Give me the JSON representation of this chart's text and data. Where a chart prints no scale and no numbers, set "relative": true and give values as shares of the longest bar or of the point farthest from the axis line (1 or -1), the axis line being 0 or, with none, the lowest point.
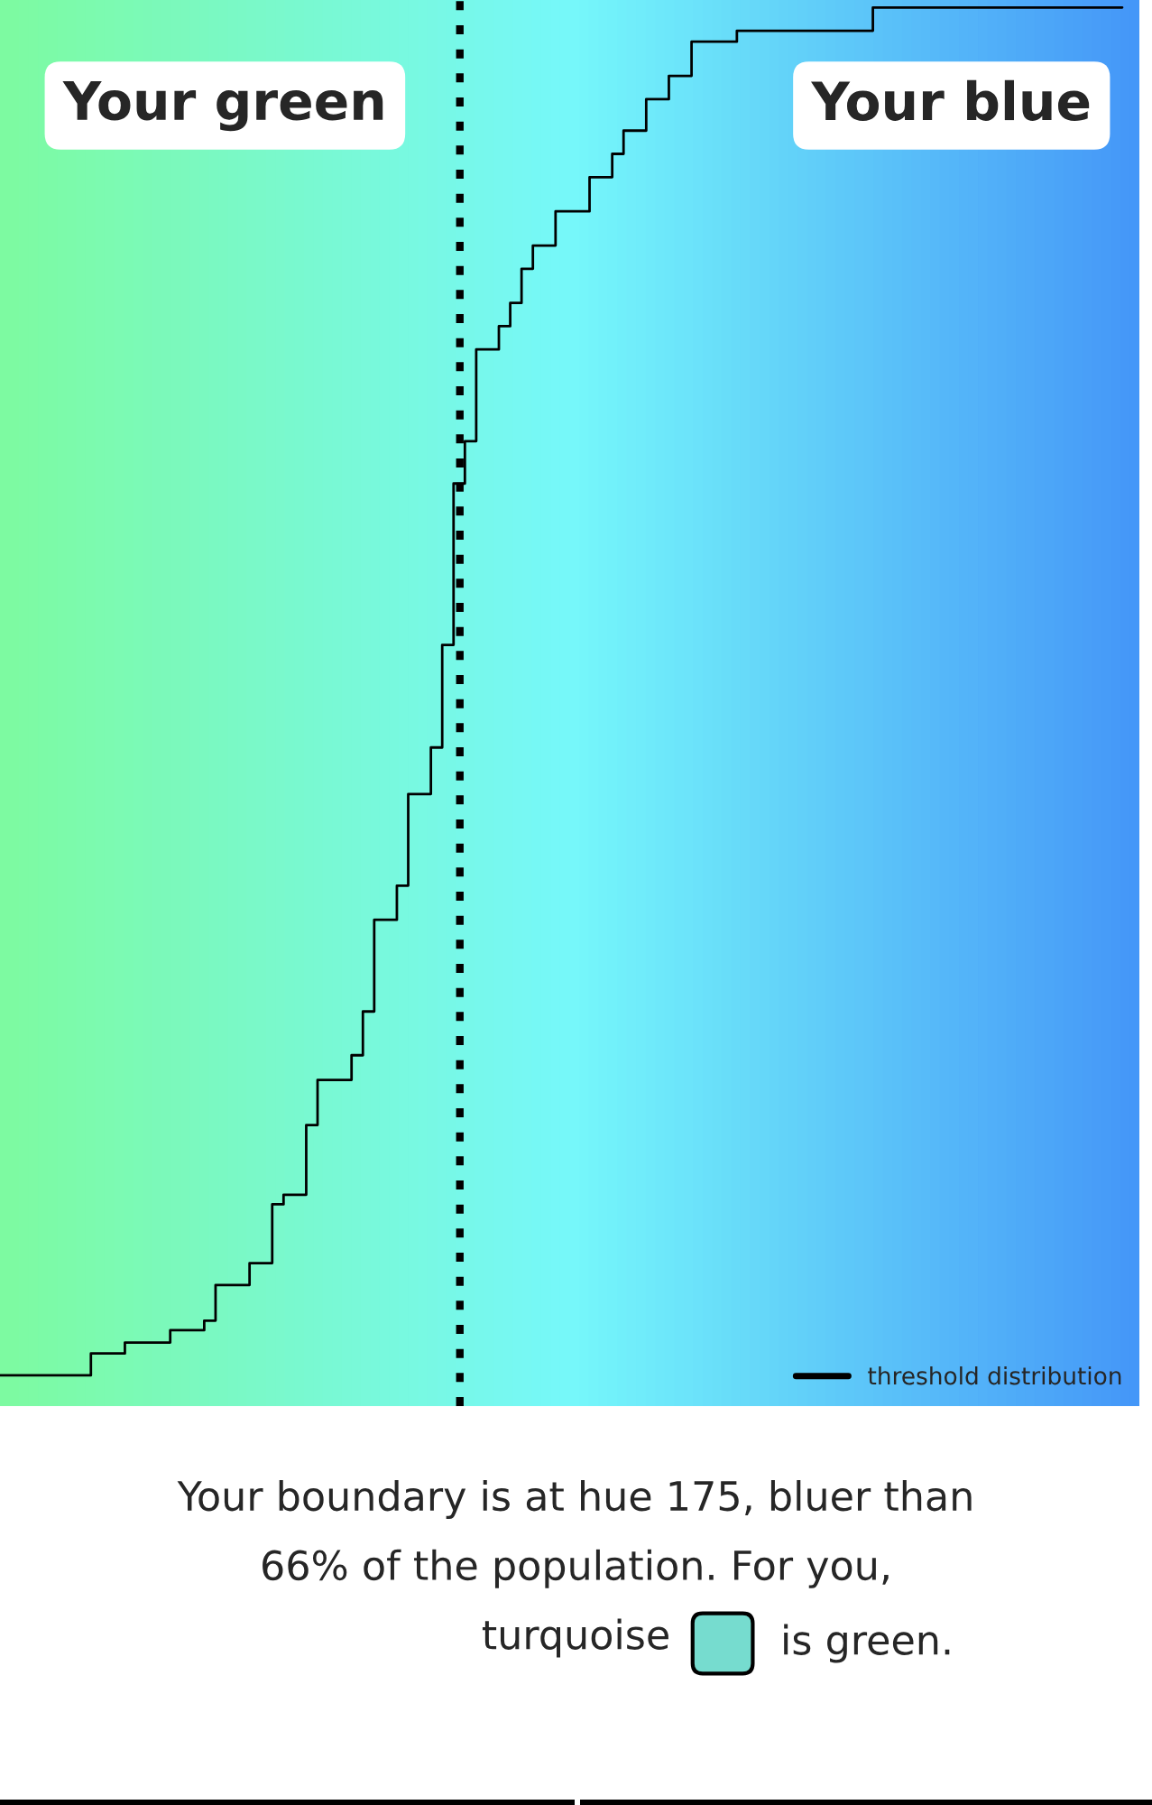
{
  "chart_data": {
    "type": "step",
    "relative": true,
    "categories": [
      null,
      null,
      null,
      null,
      null,
      null,
      null,
      null,
      null,
      null,
      null,
      null,
      null,
      null,
      null,
      null,
      null,
      null,
      null,
      null,
      null,
      null,
      null,
      null,
      null,
      null,
      null,
      null,
      null,
      null,
      null,
      null,
      null,
      null,
      null,
      null,
      null,
      null,
      null,
      null,
      null,
      null,
      null,
      null,
      null,
      null,
      null,
      null,
      null,
      null,
      null,
      null,
      null,
      null,
      null,
      null,
      null,
      null,
      null,
      null,
      null,
      null,
      null,
      null,
      null,
      null,
      null,
      null,
      null,
      null,
      null,
      null,
      null,
      null,
      null,
      null,
      null,
      null,
      null,
      null,
      null,
      null,
      null,
      null,
      null,
      null,
      null,
      null,
      null,
      null,
      null,
      null,
      null,
      null,
      null,
      null,
      null,
      null,
      null,
      null
    ],
    "series": [
      {
        "name": "threshold distribution",
        "color": "#000000",
        "values": [
          0,
          0,
          0,
          0,
          0,
          0,
          0,
          0,
          0.016,
          0.016,
          0.016,
          0.024,
          0.024,
          0.024,
          0.024,
          0.033,
          0.033,
          0.033,
          0.04,
          0.066,
          0.066,
          0.066,
          0.082,
          0.082,
          0.125,
          0.132,
          0.132,
          0.183,
          0.216,
          0.216,
          0.216,
          0.234,
          0.266,
          0.333,
          0.333,
          0.358,
          0.425,
          0.425,
          0.459,
          0.534,
          0.652,
          0.683,
          0.75,
          0.75,
          0.767,
          0.784,
          0.809,
          0.826,
          0.826,
          0.851,
          0.851,
          0.851,
          0.876,
          0.876,
          0.893,
          0.91,
          0.91,
          0.933,
          0.933,
          0.95,
          0.95,
          0.975,
          0.975,
          0.975,
          0.975,
          0.983,
          0.983,
          0.983,
          0.983,
          0.983,
          0.983,
          0.983,
          0.983,
          0.983,
          0.983,
          0.983,
          0.983,
          1,
          1,
          1,
          1,
          1,
          1,
          1,
          1,
          1,
          1,
          1,
          1,
          1,
          1,
          1,
          1,
          1,
          1,
          1,
          1,
          1,
          1,
          1
        ]
      }
    ],
    "annotations": [
      "Your green",
      "Your blue",
      "Your boundary is at hue 175, bluer than 66% of the population. For you, turquoise",
      "is green."
    ],
    "legend": "bottom right"
  }
}
